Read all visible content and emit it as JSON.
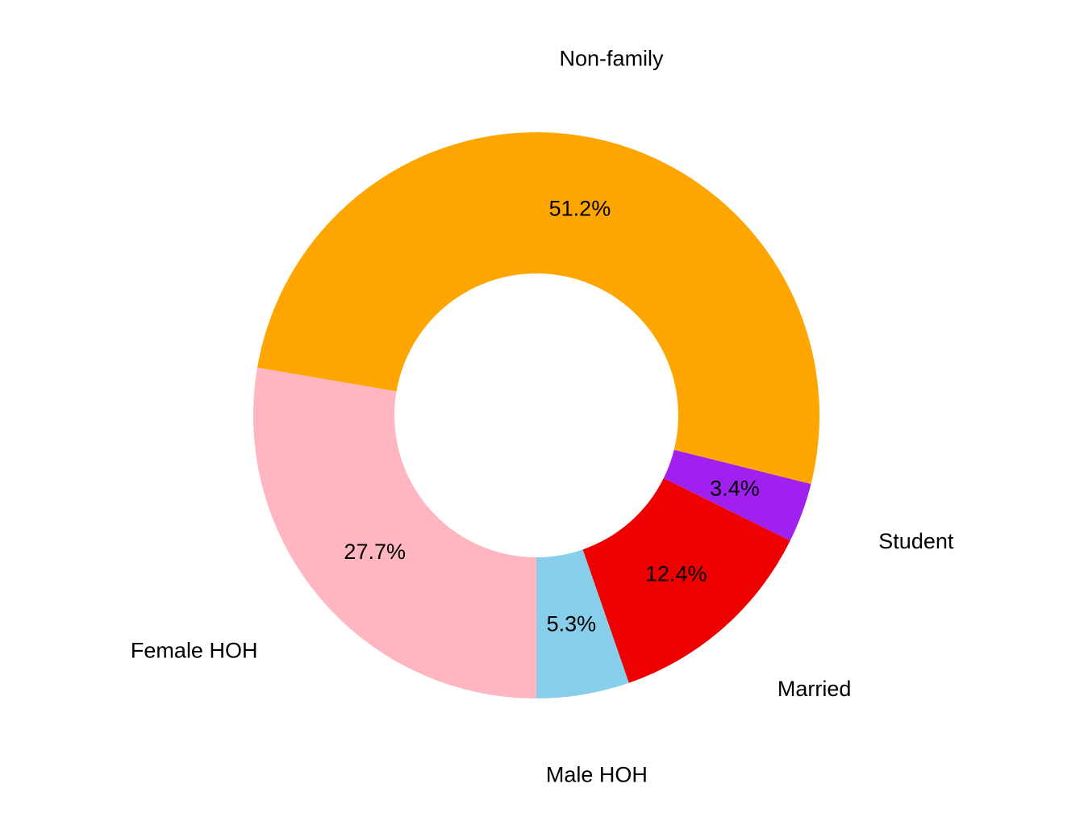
{
  "chart_data": {
    "type": "pie",
    "style": "donut",
    "title": "",
    "slices": [
      {
        "name": "Non-family",
        "value": 51.2,
        "label": "51.2%",
        "color": "#FFA500"
      },
      {
        "name": "Student",
        "value": 3.4,
        "label": "3.4%",
        "color": "#A020F0"
      },
      {
        "name": "Married",
        "value": 12.4,
        "label": "12.4%",
        "color": "#EE0000"
      },
      {
        "name": "Male HOH",
        "value": 5.3,
        "label": "5.3%",
        "color": "#87CEEB"
      },
      {
        "name": "Female HOH",
        "value": 27.7,
        "label": "27.7%",
        "color": "#FFB6C1"
      }
    ],
    "background": "#FFFFFF"
  }
}
